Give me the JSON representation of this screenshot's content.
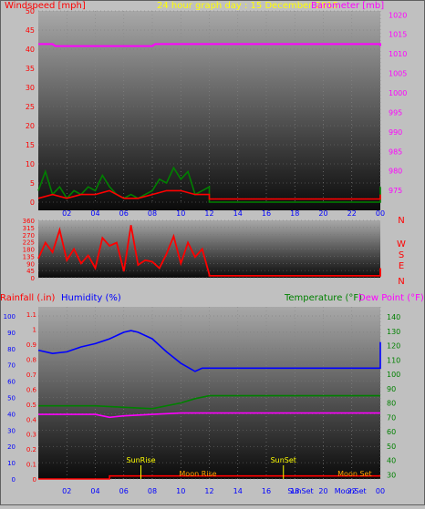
{
  "header": {
    "left_label": "Windspeed [mph]",
    "center_label": "24 hour graph day : 15 December 2015",
    "right_label": "Barometer [mb]"
  },
  "colors": {
    "wind_axis": "#ff0000",
    "baro_axis": "#ff00ff",
    "title": "#ffff00",
    "wind_avg": "#ff0000",
    "wind_gust": "#008000",
    "barometer": "#ff00ff",
    "direction": "#ff0000",
    "rain": "#ff0000",
    "humidity": "#0000ff",
    "temperature": "#008000",
    "dewpoint": "#ff00ff",
    "sun_moon": "#ffff00",
    "moon": "#ffa500"
  },
  "chart_data": [
    {
      "type": "line",
      "panel": "wind-barometer",
      "x_ticks": [
        "02",
        "04",
        "06",
        "08",
        "10",
        "12",
        "14",
        "16",
        "18",
        "20",
        "22",
        "00"
      ],
      "y_left_ticks": [
        "0",
        "5",
        "10",
        "15",
        "20",
        "25",
        "30",
        "35",
        "40",
        "45",
        "50"
      ],
      "y_right_ticks": [
        "975",
        "980",
        "985",
        "990",
        "995",
        "1000",
        "1005",
        "1010",
        "1015",
        "1020"
      ],
      "xlim": [
        0,
        24
      ],
      "ylim_left": [
        0,
        50
      ],
      "ylim_right": [
        972,
        1021
      ],
      "series": [
        {
          "name": "Barometer",
          "axis": "right",
          "x": [
            0,
            1,
            1.2,
            4,
            6,
            8,
            8.2,
            12,
            18,
            24,
            24
          ],
          "y": [
            1012.5,
            1012.5,
            1012,
            1012,
            1012,
            1012,
            1012.5,
            1012.5,
            1012.5,
            1012.5,
            1012
          ]
        },
        {
          "name": "Gust",
          "axis": "left",
          "x": [
            0,
            0.5,
            1,
            1.5,
            2,
            2.5,
            3,
            3.5,
            4,
            4.5,
            5,
            5.5,
            6,
            6.5,
            7,
            7.5,
            8,
            8.5,
            9,
            9.5,
            10,
            10.5,
            11,
            11.5,
            12,
            12,
            24,
            24
          ],
          "y": [
            3,
            8,
            2,
            4,
            1,
            3,
            2,
            4,
            3,
            7,
            4,
            2,
            1,
            2,
            1,
            2,
            3,
            6,
            5,
            9,
            6,
            8,
            2,
            3,
            4,
            0,
            0,
            4
          ]
        },
        {
          "name": "Average",
          "axis": "left",
          "x": [
            0,
            1,
            2,
            3,
            4,
            5,
            6,
            7,
            8,
            9,
            10,
            11,
            12,
            12,
            24,
            24
          ],
          "y": [
            1,
            2,
            1,
            2,
            2,
            3,
            1,
            1,
            2,
            3,
            3,
            2,
            2,
            0.8,
            0.8,
            2
          ]
        }
      ]
    },
    {
      "type": "scatter",
      "panel": "wind-direction",
      "y_ticks": [
        "0",
        "45",
        "90",
        "135",
        "180",
        "225",
        "270",
        "315",
        "360"
      ],
      "compass_labels": [
        "N",
        "W",
        "S",
        "E",
        "N"
      ],
      "ylim": [
        0,
        360
      ],
      "series": [
        {
          "name": "Direction",
          "x": [
            0,
            0.5,
            1,
            1.5,
            2,
            2.5,
            3,
            3.5,
            4,
            4.5,
            5,
            5.5,
            6,
            6.5,
            7,
            7.5,
            8,
            8.5,
            9,
            9.5,
            10,
            10.5,
            11,
            11.5,
            12,
            12,
            24,
            24
          ],
          "y": [
            120,
            220,
            160,
            300,
            110,
            180,
            90,
            140,
            60,
            250,
            200,
            220,
            40,
            330,
            80,
            110,
            100,
            60,
            150,
            260,
            90,
            220,
            130,
            180,
            20,
            12,
            12,
            60
          ]
        }
      ]
    },
    {
      "type": "line",
      "panel": "rain-humidity-temp",
      "left_labels": {
        "rain": "Rainfall (.in)",
        "humidity": "Humidity (%)"
      },
      "right_labels": {
        "temperature": "Temperature (°F)",
        "dewpoint": "Dew Point (°F)"
      },
      "rain_ticks": [
        "0",
        "0.1",
        "0.2",
        "0.3",
        "0.4",
        "0.5",
        "0.6",
        "0.7",
        "0.8",
        "0.9",
        "1",
        "1.1"
      ],
      "humidity_ticks": [
        "0",
        "10",
        "20",
        "30",
        "40",
        "50",
        "60",
        "70",
        "80",
        "90",
        "100"
      ],
      "temp_ticks": [
        "30",
        "40",
        "50",
        "60",
        "70",
        "80",
        "90",
        "100",
        "110",
        "120",
        "130",
        "140"
      ],
      "ylim_humidity": [
        0,
        100
      ],
      "ylim_temp": [
        27,
        147
      ],
      "ylim_rain": [
        0,
        1.15
      ],
      "x_ticks": [
        "02",
        "04",
        "06",
        "08",
        "10",
        "12",
        "14",
        "16",
        "18",
        "20",
        "22",
        "00"
      ],
      "series": [
        {
          "name": "Humidity",
          "axis": "humidity",
          "x": [
            0,
            1,
            2,
            3,
            4,
            5,
            6,
            6.5,
            7,
            8,
            9,
            10,
            11,
            11.5,
            12,
            12,
            24,
            24
          ],
          "y": [
            79,
            77,
            78,
            81,
            83,
            86,
            90,
            91,
            90,
            86,
            78,
            71,
            66,
            68,
            68,
            68,
            68,
            84
          ]
        },
        {
          "name": "Temperature",
          "axis": "temp",
          "x": [
            0,
            2,
            4,
            6,
            8,
            10,
            11,
            12,
            12,
            24
          ],
          "y": [
            78,
            78,
            78,
            77,
            76,
            80,
            83,
            85,
            85,
            85
          ]
        },
        {
          "name": "Dew Point",
          "axis": "temp",
          "x": [
            0,
            2,
            4,
            5,
            6,
            8,
            10,
            12,
            24
          ],
          "y": [
            72,
            72,
            72,
            70,
            71,
            72,
            73,
            73,
            73
          ]
        },
        {
          "name": "Rainfall",
          "axis": "rain",
          "x": [
            0,
            5,
            5,
            24
          ],
          "y": [
            0,
            0,
            0.02,
            0.02
          ]
        }
      ],
      "annotations": [
        {
          "label": "SunRise",
          "x": 7.2
        },
        {
          "label": "SunSet",
          "x": 17.2
        },
        {
          "label": "Moon Rise",
          "x": 11.2
        },
        {
          "label": "Moon Set",
          "x": 22.2
        }
      ],
      "lower_labels": [
        "SunSet",
        "MoonSet"
      ]
    }
  ]
}
